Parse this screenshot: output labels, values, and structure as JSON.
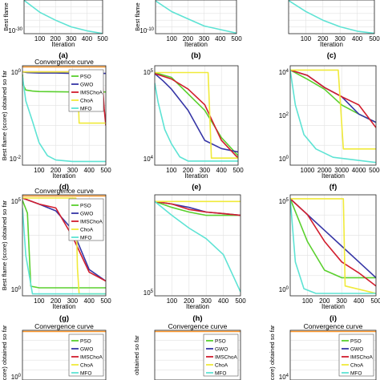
{
  "colors": {
    "PSO": "#5ad02e",
    "GWO": "#3636a6",
    "IMSChoA": "#d21e2e",
    "ChoA": "#f0ea3a",
    "MFO": "#5ee3d4",
    "top": "#ff9a30"
  },
  "chart_data": [
    {
      "panel": "a",
      "type": "line",
      "title": "",
      "xlabel": "Iteration",
      "ylabel": "Best flame",
      "xlim": [
        0,
        500
      ],
      "yscale": "log",
      "yticks": [
        "10^-30"
      ],
      "xticks": [
        "100",
        "200",
        "300",
        "400",
        "500"
      ],
      "series": [
        {
          "color": "#5ee3d4",
          "x": [
            0,
            100,
            200,
            300,
            400,
            500
          ],
          "y": [
            1e-05,
            1e-14,
            1e-20,
            1e-25,
            1e-28,
            1e-30
          ]
        }
      ]
    },
    {
      "panel": "b",
      "type": "line",
      "title": "",
      "xlabel": "Iteration",
      "ylabel": "Best flame",
      "xlim": [
        0,
        500
      ],
      "yscale": "log",
      "yticks": [
        "10^-10"
      ],
      "xticks": [
        "100",
        "200",
        "300",
        "400",
        "500"
      ],
      "series": [
        {
          "color": "#5ee3d4",
          "x": [
            0,
            100,
            200,
            300,
            400,
            500
          ],
          "y": [
            1e-05,
            1e-08,
            1e-10,
            1e-12,
            1e-13,
            1e-14
          ]
        }
      ]
    },
    {
      "panel": "c",
      "type": "line",
      "title": "",
      "xlabel": "Iteration",
      "ylabel": "",
      "xlim": [
        0,
        500
      ],
      "yscale": "log",
      "yticks": [],
      "xticks": [
        "100",
        "200",
        "300",
        "400",
        "500"
      ],
      "series": [
        {
          "color": "#5ee3d4",
          "x": [
            0,
            100,
            200,
            300,
            400,
            500
          ],
          "y": [
            1e-05,
            1e-10,
            1e-14,
            1e-17,
            1e-19,
            1e-20
          ]
        }
      ]
    },
    {
      "panel": "d",
      "type": "line",
      "title": "Convergence curve",
      "xlabel": "Iteration",
      "ylabel": "Best flame (score) obtained so far",
      "xlim": [
        0,
        500
      ],
      "yscale": "log",
      "yticks": [
        "10^0",
        "10^-2"
      ],
      "xticks": [
        "100",
        "200",
        "300",
        "400",
        "500"
      ],
      "legend": [
        "PSO",
        "GWO",
        "IMSChoA",
        "ChoA",
        "MFO"
      ],
      "series": [
        {
          "name": "PSO",
          "x": [
            0,
            5,
            20,
            60,
            100,
            200,
            300,
            400,
            500
          ],
          "y": [
            2.4,
            0.9,
            0.55,
            0.5,
            0.48,
            0.47,
            0.46,
            0.46,
            0.46
          ]
        },
        {
          "name": "GWO",
          "x": [
            0,
            30,
            100,
            200,
            300,
            400,
            500
          ],
          "y": [
            3,
            2.8,
            2.7,
            2.7,
            2.6,
            2.6,
            2.6
          ]
        },
        {
          "name": "IMSChoA",
          "x": [
            0,
            400,
            470,
            480,
            490,
            500
          ],
          "y": [
            3,
            3,
            3,
            1.2,
            0.1,
            0.02
          ]
        },
        {
          "name": "ChoA",
          "x": [
            0,
            200,
            300,
            330,
            340,
            500
          ],
          "y": [
            3,
            3,
            3,
            2.9,
            0.025,
            0.025
          ]
        },
        {
          "name": "MFO",
          "x": [
            0,
            20,
            60,
            100,
            150,
            200,
            300,
            400,
            500
          ],
          "y": [
            2,
            0.2,
            0.03,
            0.004,
            0.0012,
            0.0008,
            0.0007,
            0.0007,
            0.0007
          ]
        }
      ]
    },
    {
      "panel": "e",
      "type": "line",
      "title": "",
      "xlabel": "Iteration",
      "ylabel": "",
      "xlim": [
        0,
        500
      ],
      "yscale": "log",
      "yticks": [
        "10^5",
        "10^4"
      ],
      "xticks": [
        "100",
        "200",
        "300",
        "400",
        "500"
      ],
      "series": [
        {
          "name": "PSO",
          "x": [
            0,
            100,
            200,
            300,
            400,
            500
          ],
          "y": [
            1200000.0,
            800000.0,
            200000.0,
            50000.0,
            5000.0,
            1100.0
          ]
        },
        {
          "name": "GWO",
          "x": [
            0,
            50,
            100,
            200,
            300,
            400,
            500
          ],
          "y": [
            1100000.0,
            600000.0,
            300000.0,
            50000.0,
            4000.0,
            2000.0,
            1500.0
          ]
        },
        {
          "name": "IMSChoA",
          "x": [
            0,
            100,
            200,
            300,
            400,
            500
          ],
          "y": [
            1100000.0,
            700000.0,
            300000.0,
            80000.0,
            4000.0,
            900
          ]
        },
        {
          "name": "ChoA",
          "x": [
            0,
            320,
            340,
            500
          ],
          "y": [
            1200000.0,
            1200000.0,
            900,
            900
          ]
        },
        {
          "name": "MFO",
          "x": [
            0,
            20,
            60,
            100,
            150,
            200,
            500
          ],
          "y": [
            500000.0,
            100000.0,
            10000.0,
            3000.0,
            1000.0,
            700,
            700
          ]
        }
      ]
    },
    {
      "panel": "f",
      "type": "line",
      "title": "",
      "xlabel": "Iteration",
      "ylabel": "",
      "xlim": [
        0,
        5000
      ],
      "yscale": "log",
      "yticks": [
        "10^4",
        "10^2",
        "10^0"
      ],
      "xticks": [
        "1000",
        "2000",
        "3000",
        "4000",
        "5000"
      ],
      "series": [
        {
          "name": "PSO",
          "x": [
            0,
            1000,
            2000,
            3000,
            4000,
            5000
          ],
          "y": [
            100000.0,
            30000.0,
            8000.0,
            1000.0,
            300,
            100
          ]
        },
        {
          "name": "GWO",
          "x": [
            0,
            1000,
            2000,
            3000,
            4000,
            5000
          ],
          "y": [
            100000.0,
            50000.0,
            10000.0,
            3000.0,
            300,
            100
          ]
        },
        {
          "name": "IMSChoA",
          "x": [
            0,
            1000,
            2000,
            3000,
            4000,
            5000
          ],
          "y": [
            100000.0,
            50000.0,
            10000.0,
            3000.0,
            1000.0,
            50
          ]
        },
        {
          "name": "ChoA",
          "x": [
            0,
            2800,
            3100,
            5000
          ],
          "y": [
            100000.0,
            100000.0,
            3,
            3
          ]
        },
        {
          "name": "MFO",
          "x": [
            0,
            300,
            800,
            1500,
            2500,
            5000
          ],
          "y": [
            100000.0,
            1000.0,
            20,
            3,
            1,
            0.5
          ]
        }
      ]
    },
    {
      "panel": "g",
      "type": "line",
      "title": "Convergence curve",
      "xlabel": "Iteration",
      "ylabel": "Best flame (score) obtained so far",
      "xlim": [
        0,
        500
      ],
      "yscale": "log",
      "yticks": [
        "10^5",
        "10^0"
      ],
      "xticks": [
        "100",
        "200",
        "300",
        "400",
        "500"
      ],
      "legend": [
        "PSO",
        "GWO",
        "IMSChoA",
        "ChoA",
        "MFO"
      ],
      "series": [
        {
          "name": "PSO",
          "x": [
            0,
            30,
            50,
            100,
            300,
            500
          ],
          "y": [
            20000000.0,
            2000000.0,
            4,
            3,
            3,
            3
          ]
        },
        {
          "name": "GWO",
          "x": [
            0,
            100,
            200,
            300,
            400,
            500
          ],
          "y": [
            30000000.0,
            10000000.0,
            3000000.0,
            100000.0,
            80,
            10
          ]
        },
        {
          "name": "IMSChoA",
          "x": [
            0,
            100,
            200,
            300,
            400,
            500
          ],
          "y": [
            30000000.0,
            10000000.0,
            5000000.0,
            30000.0,
            50,
            10
          ]
        },
        {
          "name": "ChoA",
          "x": [
            0,
            320,
            330,
            340,
            500
          ],
          "y": [
            30000000.0,
            30000000.0,
            100,
            1,
            1
          ]
        },
        {
          "name": "MFO",
          "x": [
            0,
            20,
            60,
            100,
            500
          ],
          "y": [
            5000000.0,
            1000.0,
            1,
            1,
            1
          ]
        }
      ]
    },
    {
      "panel": "h",
      "type": "line",
      "title": "",
      "xlabel": "Iteration",
      "ylabel": "",
      "xlim": [
        0,
        500
      ],
      "yscale": "log",
      "yticks": [
        "10^5"
      ],
      "xticks": [
        "100",
        "200",
        "300",
        "400",
        "500"
      ],
      "series": [
        {
          "name": "PSO",
          "x": [
            0,
            100,
            200,
            300,
            400,
            500
          ],
          "y": [
            100000.0,
            60000.0,
            40000.0,
            30000.0,
            30000.0,
            30000.0
          ]
        },
        {
          "name": "GWO",
          "x": [
            0,
            100,
            200,
            300,
            400,
            500
          ],
          "y": [
            100000.0,
            80000.0,
            60000.0,
            40000.0,
            35000.0,
            30000.0
          ]
        },
        {
          "name": "IMSChoA",
          "x": [
            0,
            100,
            200,
            300,
            400,
            500
          ],
          "y": [
            100000.0,
            80000.0,
            50000.0,
            40000.0,
            35000.0,
            30000.0
          ]
        },
        {
          "name": "ChoA",
          "x": [
            0,
            500
          ],
          "y": [
            100000.0,
            100000.0
          ]
        },
        {
          "name": "MFO",
          "x": [
            0,
            100,
            200,
            300,
            400,
            450,
            500
          ],
          "y": [
            100000.0,
            30000.0,
            10000.0,
            4000.0,
            1000.0,
            200,
            40
          ]
        }
      ]
    },
    {
      "panel": "i",
      "type": "line",
      "title": "",
      "xlabel": "Iteration",
      "ylabel": "",
      "xlim": [
        0,
        500
      ],
      "yscale": "log",
      "yticks": [
        "10^5",
        "10^0"
      ],
      "xticks": [
        "100",
        "200",
        "300",
        "400",
        "500"
      ],
      "series": [
        {
          "name": "PSO",
          "x": [
            0,
            100,
            200,
            300,
            400,
            500
          ],
          "y": [
            1000000.0,
            2000.0,
            30,
            10,
            10,
            10
          ]
        },
        {
          "name": "GWO",
          "x": [
            0,
            100,
            200,
            300,
            400,
            500
          ],
          "y": [
            1000000.0,
            100000.0,
            10000.0,
            1000.0,
            100,
            10
          ]
        },
        {
          "name": "IMSChoA",
          "x": [
            0,
            100,
            200,
            300,
            400,
            500
          ],
          "y": [
            1000000.0,
            100000.0,
            2000.0,
            100,
            20,
            3
          ]
        },
        {
          "name": "ChoA",
          "x": [
            0,
            310,
            320,
            500
          ],
          "y": [
            1000000.0,
            1000000.0,
            3,
            1
          ]
        },
        {
          "name": "MFO",
          "x": [
            0,
            30,
            80,
            150,
            500
          ],
          "y": [
            1000000.0,
            100,
            2,
            1,
            1
          ]
        }
      ]
    },
    {
      "panel": "j",
      "type": "line",
      "title": "Convergence curve",
      "xlabel": "",
      "ylabel": "(score) obtained so far",
      "xlim": [
        0,
        500
      ],
      "yscale": "log",
      "yticks": [
        "10^0"
      ],
      "xticks": [],
      "legend": [
        "PSO",
        "GWO",
        "IMSChoA",
        "ChoA",
        "MFO"
      ],
      "series": []
    },
    {
      "panel": "k",
      "type": "line",
      "title": "Convergence curve",
      "xlabel": "",
      "ylabel": "obtained so far",
      "xlim": [
        0,
        500
      ],
      "yscale": "linear",
      "yticks": [],
      "xticks": [],
      "legend": [
        "PSO",
        "GWO",
        "IMSChoA",
        "ChoA",
        "MFO"
      ],
      "series": []
    },
    {
      "panel": "l",
      "type": "line",
      "title": "Convergence curve",
      "xlabel": "",
      "ylabel": "(score) obtained so far",
      "xlim": [
        0,
        500
      ],
      "yscale": "log",
      "yticks": [
        "10^4"
      ],
      "xticks": [],
      "legend": [
        "PSO",
        "GWO",
        "IMSChoA",
        "ChoA",
        "MFO"
      ],
      "series": []
    }
  ],
  "captions": [
    "(a)",
    "(b)",
    "(c)",
    "(d)",
    "(e)",
    "(f)",
    "(g)",
    "(h)",
    "(i)"
  ]
}
